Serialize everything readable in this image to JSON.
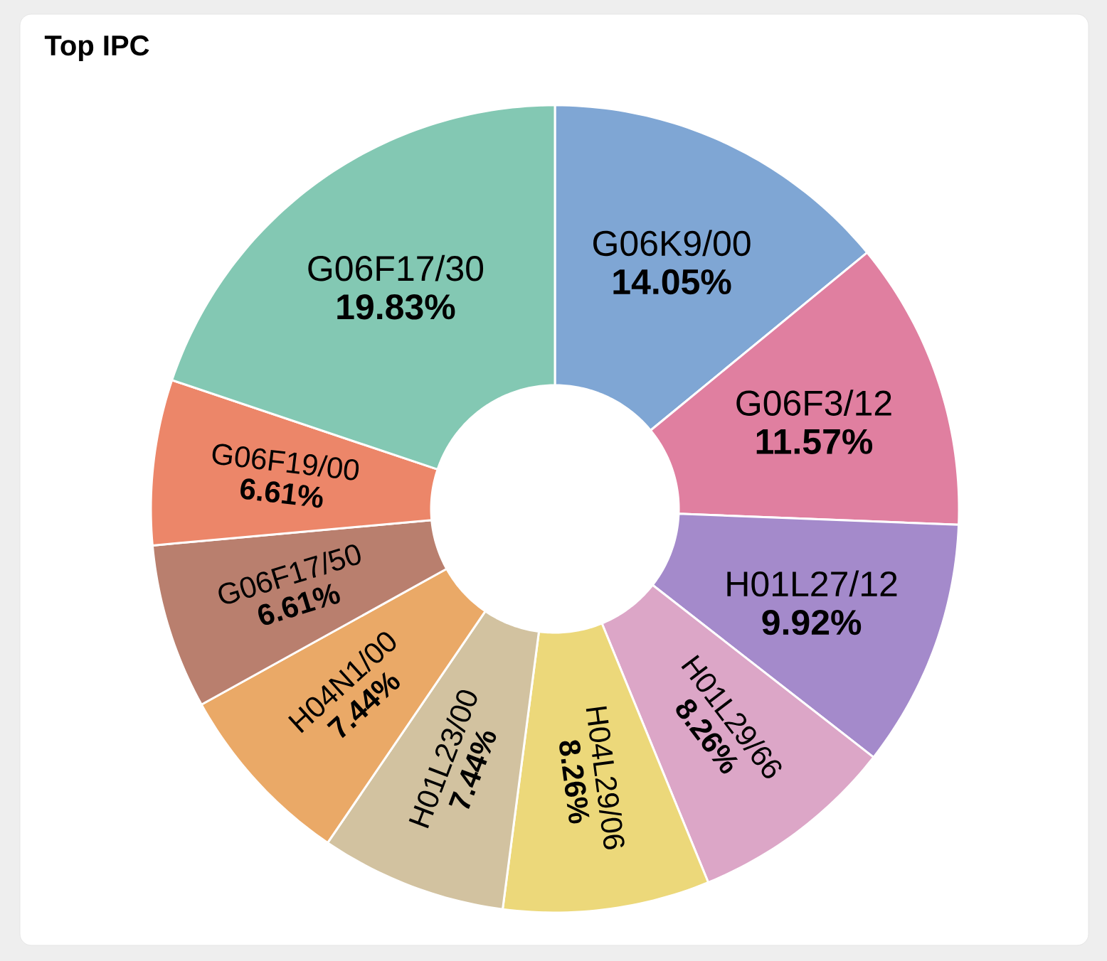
{
  "chart_data": {
    "type": "donut",
    "title": "Top IPC",
    "categories": [
      "G06K9/00",
      "G06F3/12",
      "H01L27/12",
      "H01L29/66",
      "H04L29/06",
      "H01L23/00",
      "H04N1/00",
      "G06F17/50",
      "G06F19/00",
      "G06F17/30"
    ],
    "values": [
      14.05,
      11.57,
      9.92,
      8.26,
      8.26,
      7.44,
      7.44,
      6.61,
      6.61,
      19.83
    ],
    "value_labels": [
      "14.05%",
      "11.57%",
      "9.92%",
      "8.26%",
      "8.26%",
      "7.44%",
      "7.44%",
      "6.61%",
      "6.61%",
      "19.83%"
    ],
    "colors": [
      "#7fa6d4",
      "#e07fa0",
      "#a48acb",
      "#dca6c7",
      "#ecd87a",
      "#d2c2a0",
      "#eaa967",
      "#b97f6e",
      "#ec8669",
      "#83c8b3"
    ]
  }
}
